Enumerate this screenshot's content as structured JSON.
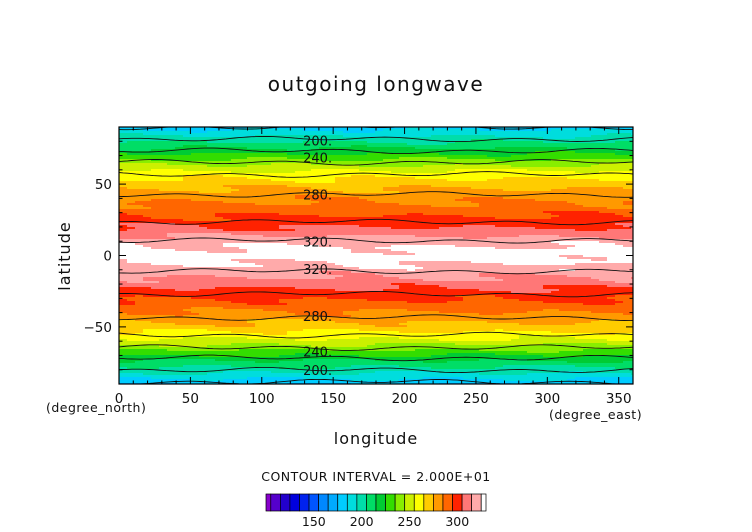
{
  "chart_data": {
    "type": "heatmap",
    "title": "outgoing longwave",
    "xlabel": "longitude",
    "ylabel": "latitude",
    "x_unit": "(degree_east)",
    "y_unit": "(degree_north)",
    "xlim": [
      0,
      360
    ],
    "ylim": [
      -90,
      90
    ],
    "x_ticks": [
      0,
      50,
      100,
      150,
      200,
      250,
      300,
      350
    ],
    "y_ticks": [
      -50,
      0,
      50
    ],
    "contour_interval_text": "CONTOUR INTERVAL = 2.000E+01",
    "contour_interval": 20,
    "contour_labels": [
      {
        "text": "200.",
        "lon": 130,
        "lat": 80
      },
      {
        "text": "240.",
        "lon": 130,
        "lat": 68
      },
      {
        "text": "280.",
        "lon": 130,
        "lat": 42
      },
      {
        "text": "320.",
        "lon": 130,
        "lat": 9
      },
      {
        "text": "320.",
        "lon": 130,
        "lat": -10
      },
      {
        "text": "280.",
        "lon": 130,
        "lat": -43
      },
      {
        "text": "240.",
        "lon": 130,
        "lat": -68
      },
      {
        "text": "200.",
        "lon": 130,
        "lat": -81
      }
    ],
    "profile": [
      {
        "lat": -90,
        "olr": 176
      },
      {
        "lat": -82,
        "olr": 196
      },
      {
        "lat": -74,
        "olr": 214
      },
      {
        "lat": -66,
        "olr": 236
      },
      {
        "lat": -58,
        "olr": 256
      },
      {
        "lat": -50,
        "olr": 271
      },
      {
        "lat": -42,
        "olr": 282
      },
      {
        "lat": -34,
        "olr": 292
      },
      {
        "lat": -26,
        "olr": 301
      },
      {
        "lat": -18,
        "olr": 312
      },
      {
        "lat": -10,
        "olr": 321
      },
      {
        "lat": -5,
        "olr": 326
      },
      {
        "lat": 0,
        "olr": 330
      },
      {
        "lat": 5,
        "olr": 326
      },
      {
        "lat": 10,
        "olr": 321
      },
      {
        "lat": 18,
        "olr": 307
      },
      {
        "lat": 26,
        "olr": 297
      },
      {
        "lat": 34,
        "olr": 288
      },
      {
        "lat": 42,
        "olr": 281
      },
      {
        "lat": 50,
        "olr": 271
      },
      {
        "lat": 58,
        "olr": 258
      },
      {
        "lat": 66,
        "olr": 238
      },
      {
        "lat": 74,
        "olr": 218
      },
      {
        "lat": 82,
        "olr": 199
      },
      {
        "lat": 90,
        "olr": 180
      }
    ],
    "colorbar": {
      "ticks": [
        150,
        200,
        250,
        300
      ],
      "levels": [
        105,
        115,
        125,
        135,
        145,
        155,
        165,
        175,
        185,
        195,
        205,
        215,
        225,
        235,
        245,
        255,
        265,
        275,
        285,
        295,
        305,
        315,
        325
      ],
      "colors": [
        "#8800cc",
        "#5500cc",
        "#2200cc",
        "#0000dd",
        "#0022ee",
        "#0055ff",
        "#0088ff",
        "#00aaff",
        "#00ccff",
        "#00dddd",
        "#00ddaa",
        "#00dd66",
        "#00cc33",
        "#33dd00",
        "#88ee00",
        "#ccf000",
        "#ffff00",
        "#ffcc00",
        "#ff9900",
        "#ff6600",
        "#ff2200",
        "#ff7777",
        "#ffaaaa"
      ]
    }
  }
}
